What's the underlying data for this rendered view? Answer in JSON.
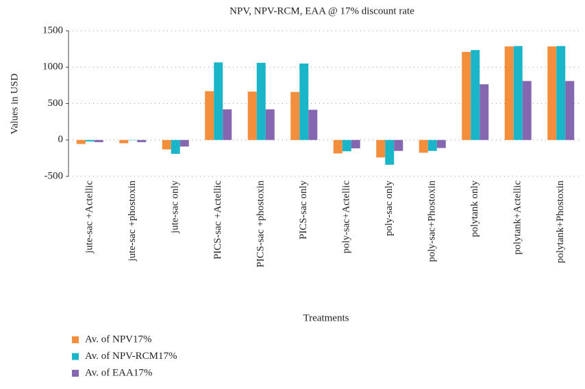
{
  "chart_data": {
    "type": "bar",
    "title": "NPV, NPV-RCM, EAA @ 17% discount rate",
    "x_label": "Treatments",
    "y_label": "Values in USD",
    "categories": [
      "jute-sac +Actellic",
      "jute-sac +phostoxin",
      "jute-sac only",
      "PICS-sac +Actellic",
      "PICS-sac +phostoxin",
      "PICS-sac only",
      "poly-sac+Actellic",
      "poly-sac only",
      "poly-sac+Phostoxin",
      "polytank only",
      "polytank+Actellic",
      "polytank+Phostoxin"
    ],
    "series": [
      {
        "name": "Av. of NPV17%",
        "color": "#f28e3c",
        "values": [
          -55,
          -45,
          -130,
          670,
          665,
          660,
          -185,
          -240,
          -175,
          1210,
          1285,
          1285
        ]
      },
      {
        "name": "Av. of NPV-RCM17%",
        "color": "#1ab5c8",
        "values": [
          -20,
          -5,
          -190,
          1065,
          1060,
          1050,
          -155,
          -340,
          -150,
          1235,
          1290,
          1290
        ]
      },
      {
        "name": "Av. of EAA17%",
        "color": "#8467b0",
        "values": [
          -30,
          -30,
          -90,
          420,
          420,
          415,
          -115,
          -150,
          -110,
          765,
          810,
          810
        ]
      }
    ],
    "ylim": [
      -500,
      1500
    ],
    "yticks": [
      -500,
      0,
      500,
      1000,
      1500
    ],
    "grid": true,
    "legend": "bottom-left"
  }
}
